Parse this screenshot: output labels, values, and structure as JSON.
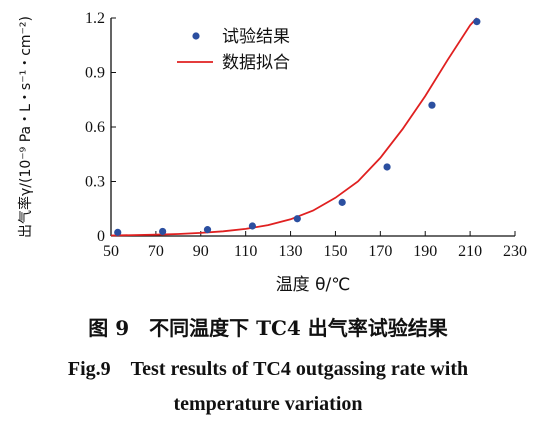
{
  "chart_data": {
    "type": "scatter",
    "xlabel": "温度 θ/℃",
    "ylabel": "出气率γ/(10⁻⁹ Pa・L・s⁻¹・cm⁻²)",
    "xlim": [
      50,
      230
    ],
    "ylim": [
      0,
      1.2
    ],
    "xticks": [
      50,
      70,
      90,
      110,
      130,
      150,
      170,
      190,
      210,
      230
    ],
    "yticks": [
      0,
      0.3,
      0.6,
      0.9,
      1.2
    ],
    "ytick_labels": [
      "0",
      "0.3",
      "0.6",
      "0.9",
      "1.2"
    ],
    "legend_position": "top-left",
    "series": [
      {
        "name": "试验结果",
        "kind": "points",
        "color": "#2b4fa0",
        "x": [
          53,
          73,
          93,
          113,
          133,
          153,
          173,
          193,
          213
        ],
        "y": [
          0.02,
          0.025,
          0.035,
          0.055,
          0.095,
          0.185,
          0.38,
          0.72,
          1.18
        ]
      },
      {
        "name": "数据拟合",
        "kind": "line",
        "color": "#e02020",
        "x": [
          50,
          60,
          70,
          80,
          90,
          100,
          110,
          120,
          130,
          140,
          150,
          160,
          170,
          180,
          190,
          200,
          210,
          213
        ],
        "y": [
          0.003,
          0.005,
          0.007,
          0.011,
          0.017,
          0.026,
          0.039,
          0.06,
          0.092,
          0.14,
          0.21,
          0.3,
          0.43,
          0.59,
          0.77,
          0.97,
          1.16,
          1.2
        ]
      }
    ]
  },
  "caption": {
    "cn": "图 9　不同温度下 TC4 出气率试验结果",
    "en_line1": "Fig.9　Test results of TC4 outgassing rate with",
    "en_line2": "temperature variation"
  }
}
